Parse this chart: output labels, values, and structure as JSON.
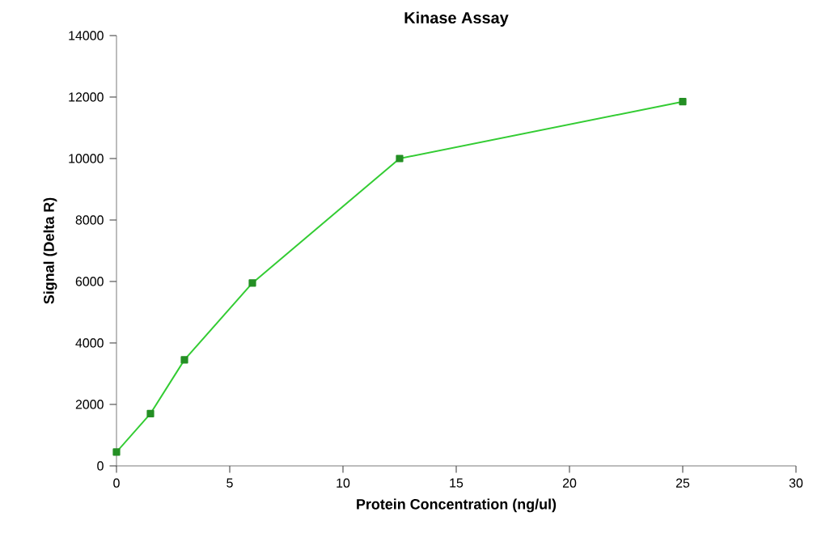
{
  "chart_data": {
    "type": "line",
    "title": "Kinase Assay",
    "xlabel": "Protein Concentration (ng/ul)",
    "ylabel": "Signal (Delta R)",
    "x": [
      0,
      1.5,
      3,
      6,
      12.5,
      25
    ],
    "series": [
      {
        "color": "#33cc33",
        "values": [
          450,
          1700,
          3450,
          5950,
          10000,
          11850
        ]
      }
    ],
    "xlim": [
      0,
      30
    ],
    "xticks": [
      0,
      5,
      10,
      15,
      20,
      25,
      30
    ],
    "ylim": [
      0,
      14000
    ],
    "yticks": [
      0,
      2000,
      4000,
      6000,
      8000,
      10000,
      12000,
      14000
    ],
    "grid": false,
    "marker": "square",
    "line_style": "solid"
  }
}
